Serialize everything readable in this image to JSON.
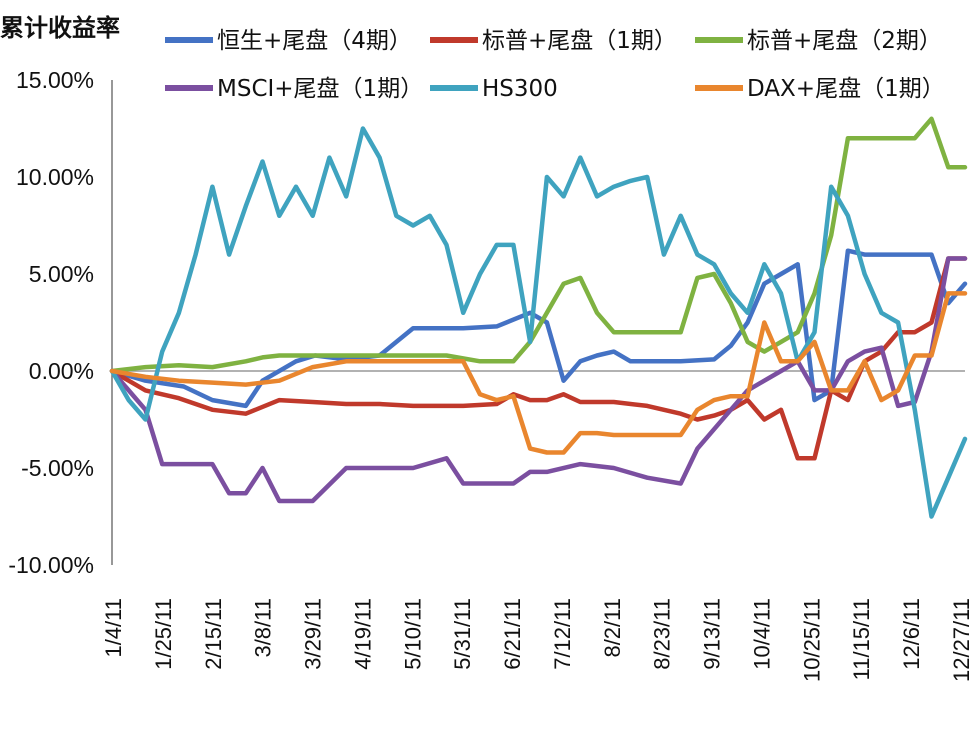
{
  "chart_data": {
    "type": "line",
    "ylabel": "累计收益率",
    "ylim": [
      -10,
      15
    ],
    "yticks": [
      "15.00%",
      "10.00%",
      "5.00%",
      "0.00%",
      "-5.00%",
      "-10.00%"
    ],
    "ytick_values": [
      15,
      10,
      5,
      0,
      -5,
      -10
    ],
    "x_labels": [
      "1/4/11",
      "1/25/11",
      "2/15/11",
      "3/8/11",
      "3/29/11",
      "4/19/11",
      "5/10/11",
      "5/31/11",
      "6/21/11",
      "7/12/11",
      "8/2/11",
      "8/23/11",
      "9/13/11",
      "10/4/11",
      "10/25/11",
      "11/15/11",
      "12/6/11",
      "12/27/11"
    ],
    "x_range": [
      0,
      357
    ],
    "grid": false,
    "legend_position": "top",
    "series": [
      {
        "name": "恒生+尾盘（4期）",
        "color": "#4472C4",
        "x": [
          0,
          14,
          30,
          42,
          56,
          63,
          77,
          85,
          98,
          112,
          126,
          140,
          147,
          161,
          175,
          182,
          189,
          196,
          203,
          210,
          217,
          224,
          238,
          252,
          259,
          266,
          273,
          280,
          287,
          294,
          301,
          308,
          315,
          322,
          329,
          336,
          343,
          350,
          357
        ],
        "y": [
          0,
          -0.5,
          -0.8,
          -1.5,
          -1.8,
          -0.5,
          0.5,
          0.8,
          0.6,
          0.8,
          2.2,
          2.2,
          2.2,
          2.3,
          3.0,
          2.5,
          -0.5,
          0.5,
          0.8,
          1.0,
          0.5,
          0.5,
          0.5,
          0.6,
          1.3,
          2.5,
          4.5,
          5.0,
          5.5,
          -1.5,
          -1.0,
          6.2,
          6.0,
          6.0,
          6.0,
          6.0,
          6.0,
          3.5,
          4.5
        ]
      },
      {
        "name": "标普+尾盘（1期）",
        "color": "#C0392B",
        "x": [
          0,
          14,
          28,
          42,
          56,
          70,
          84,
          98,
          112,
          126,
          140,
          147,
          161,
          168,
          175,
          182,
          189,
          196,
          210,
          224,
          231,
          238,
          245,
          252,
          259,
          266,
          273,
          280,
          287,
          294,
          301,
          308,
          315,
          322,
          329,
          336,
          343,
          350,
          357
        ],
        "y": [
          0,
          -1.0,
          -1.4,
          -2.0,
          -2.2,
          -1.5,
          -1.6,
          -1.7,
          -1.7,
          -1.8,
          -1.8,
          -1.8,
          -1.7,
          -1.2,
          -1.5,
          -1.5,
          -1.2,
          -1.6,
          -1.6,
          -1.8,
          -2.0,
          -2.2,
          -2.5,
          -2.3,
          -2.0,
          -1.5,
          -2.5,
          -2.0,
          -4.5,
          -4.5,
          -1.0,
          -1.5,
          0.5,
          1.0,
          2.0,
          2.0,
          2.5,
          5.8,
          5.8
        ]
      },
      {
        "name": "标普+尾盘（2期）",
        "color": "#7FB241",
        "x": [
          0,
          14,
          28,
          42,
          56,
          63,
          70,
          84,
          98,
          112,
          126,
          140,
          154,
          161,
          168,
          175,
          182,
          189,
          196,
          203,
          210,
          217,
          224,
          231,
          238,
          245,
          252,
          259,
          266,
          273,
          280,
          287,
          294,
          301,
          308,
          315,
          322,
          329,
          336,
          343,
          350,
          357
        ],
        "y": [
          0,
          0.2,
          0.3,
          0.2,
          0.5,
          0.7,
          0.8,
          0.8,
          0.8,
          0.8,
          0.8,
          0.8,
          0.5,
          0.5,
          0.5,
          1.5,
          3.0,
          4.5,
          4.8,
          3.0,
          2.0,
          2.0,
          2.0,
          2.0,
          2.0,
          4.8,
          5.0,
          3.5,
          1.5,
          1.0,
          1.5,
          2.0,
          4.0,
          7.0,
          12.0,
          12.0,
          12.0,
          12.0,
          12.0,
          13.0,
          10.5,
          10.5
        ]
      },
      {
        "name": "MSCI+尾盘（1期）",
        "color": "#7B4FA0",
        "x": [
          0,
          14,
          21,
          28,
          42,
          49,
          56,
          63,
          70,
          84,
          98,
          112,
          126,
          140,
          147,
          161,
          168,
          175,
          182,
          196,
          210,
          224,
          238,
          245,
          252,
          259,
          266,
          273,
          280,
          287,
          294,
          301,
          308,
          315,
          322,
          329,
          336,
          343,
          350,
          357
        ],
        "y": [
          0,
          -2.0,
          -4.8,
          -4.8,
          -4.8,
          -6.3,
          -6.3,
          -5.0,
          -6.7,
          -6.7,
          -5.0,
          -5.0,
          -5.0,
          -4.5,
          -5.8,
          -5.8,
          -5.8,
          -5.2,
          -5.2,
          -4.8,
          -5.0,
          -5.5,
          -5.8,
          -4.0,
          -3.0,
          -2.0,
          -1.0,
          -0.5,
          0.0,
          0.5,
          -1.0,
          -1.0,
          0.5,
          1.0,
          1.2,
          -1.8,
          -1.6,
          1.0,
          5.8,
          5.8
        ]
      },
      {
        "name": "HS300",
        "color": "#3FA3BF",
        "x": [
          0,
          7,
          14,
          21,
          28,
          35,
          42,
          49,
          56,
          63,
          70,
          77,
          84,
          91,
          98,
          105,
          112,
          119,
          126,
          133,
          140,
          147,
          154,
          161,
          168,
          175,
          182,
          189,
          196,
          203,
          210,
          217,
          224,
          231,
          238,
          245,
          252,
          259,
          266,
          273,
          280,
          287,
          294,
          301,
          308,
          315,
          322,
          329,
          336,
          343,
          350,
          357
        ],
        "y": [
          0,
          -1.5,
          -2.5,
          1.0,
          3.0,
          6.0,
          9.5,
          6.0,
          8.5,
          10.8,
          8.0,
          9.5,
          8.0,
          11.0,
          9.0,
          12.5,
          11.0,
          8.0,
          7.5,
          8.0,
          6.5,
          3.0,
          5.0,
          6.5,
          6.5,
          1.5,
          10.0,
          9.0,
          11.0,
          9.0,
          9.5,
          9.8,
          10.0,
          6.0,
          8.0,
          6.0,
          5.5,
          4.0,
          3.0,
          5.5,
          4.0,
          0.5,
          2.0,
          9.5,
          8.0,
          5.0,
          3.0,
          2.5,
          -2.0,
          -7.5,
          -5.5,
          -3.5
        ]
      },
      {
        "name": "DAX+尾盘（1期）",
        "color": "#E9862E",
        "x": [
          0,
          14,
          28,
          42,
          56,
          70,
          84,
          98,
          112,
          126,
          140,
          147,
          154,
          161,
          168,
          175,
          182,
          189,
          196,
          203,
          210,
          217,
          224,
          231,
          238,
          245,
          252,
          259,
          266,
          273,
          280,
          287,
          294,
          301,
          308,
          315,
          322,
          329,
          336,
          343,
          350,
          357
        ],
        "y": [
          0,
          -0.3,
          -0.5,
          -0.6,
          -0.7,
          -0.5,
          0.2,
          0.5,
          0.5,
          0.5,
          0.5,
          0.5,
          -1.2,
          -1.5,
          -1.3,
          -4.0,
          -4.2,
          -4.2,
          -3.2,
          -3.2,
          -3.3,
          -3.3,
          -3.3,
          -3.3,
          -3.3,
          -2.0,
          -1.5,
          -1.3,
          -1.3,
          2.5,
          0.5,
          0.5,
          1.5,
          -1.0,
          -1.0,
          0.5,
          -1.5,
          -1.0,
          0.8,
          0.8,
          4.0,
          4.0
        ]
      }
    ]
  }
}
